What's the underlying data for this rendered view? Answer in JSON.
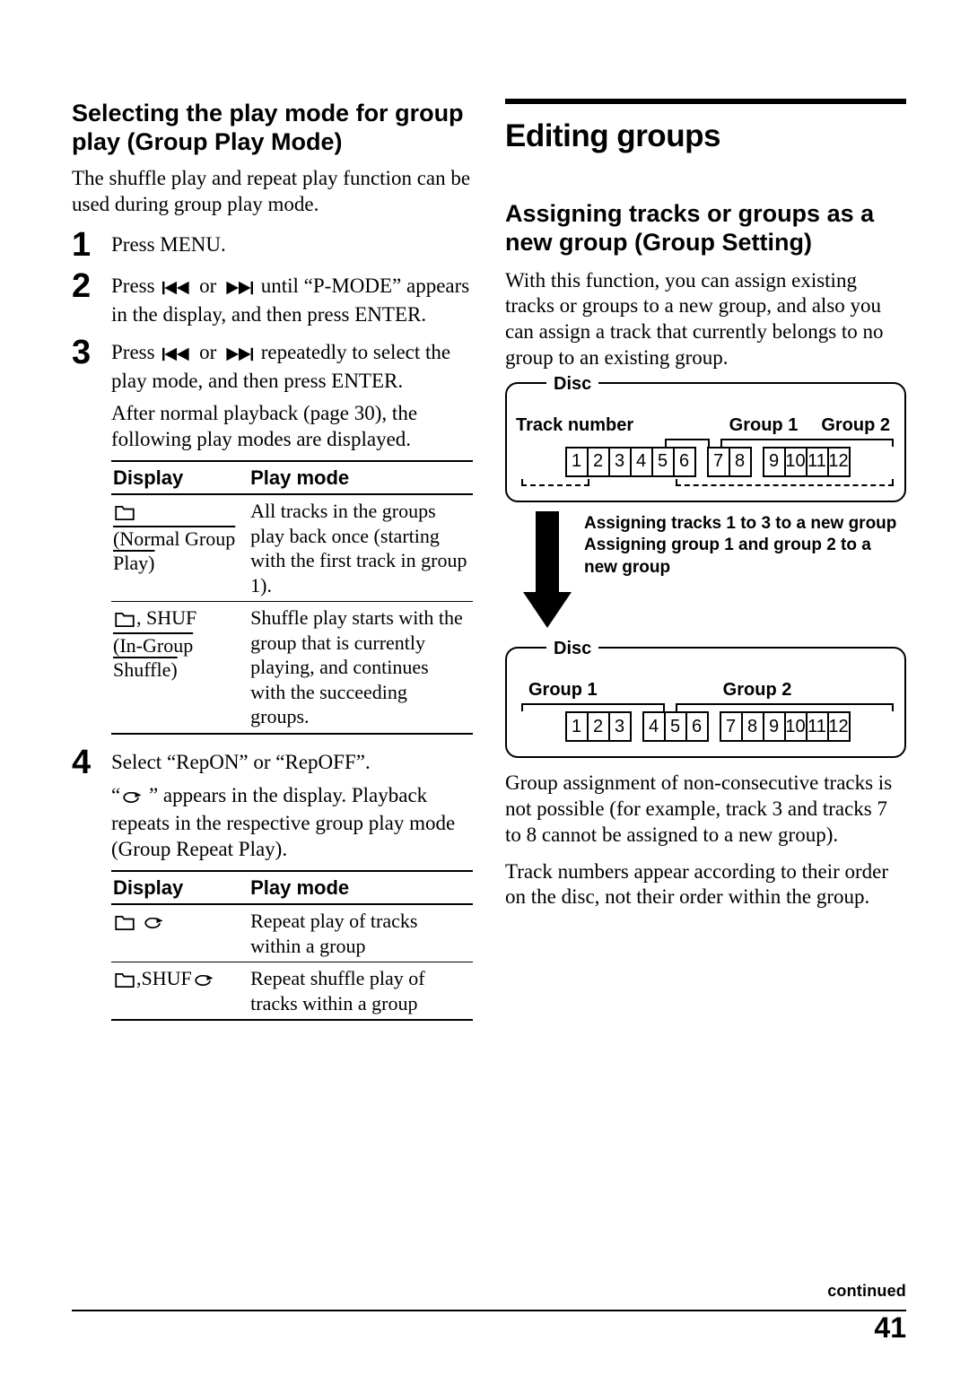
{
  "left": {
    "heading": "Selecting the play mode for group play (Group Play Mode)",
    "intro": "The shuffle play and repeat play function can be used during group play mode.",
    "steps": {
      "s1": "Press MENU.",
      "s2a": "Press ",
      "s2b": " or ",
      "s2c": " until “P-MODE” appears in the display, and then press ENTER.",
      "s3a": "Press ",
      "s3b": " or ",
      "s3c": " repeatedly to select the play mode, and then press ENTER.",
      "s3_note": "After normal playback (page 30), the following play modes are displayed.",
      "s4": "Select “RepON” or “RepOFF”.",
      "s4_note1": "“",
      "s4_note2": " ” appears in the display. Playback repeats in the respective group play mode (Group Repeat Play)."
    },
    "table1": {
      "h1": "Display",
      "h2": "Play mode",
      "r1dA": "(Normal Group Play)",
      "r1p": "All tracks in the groups play back once (starting with the first track in group 1).",
      "r2dA": ", SHUF",
      "r2dB": "(In-Group Shuffle)",
      "r2p": "Shuffle play starts with the group that is currently playing, and continues with the succeeding groups."
    },
    "table2": {
      "h1": "Display",
      "h2": "Play mode",
      "r1p": "Repeat play of tracks within a group",
      "r2dA": ",SHUF",
      "r2p": "Repeat shuffle play of tracks within a group"
    }
  },
  "right": {
    "bigheading": "Editing groups",
    "heading": "Assigning tracks or groups as a new group (Group Setting)",
    "intro": "With this function, you can assign existing tracks or groups to a new group, and also you can assign a track that currently belongs to no group to an existing group.",
    "diagram": {
      "disc": "Disc",
      "tracknum": "Track number",
      "group1": "Group 1",
      "group2": "Group 2",
      "tracksA": [
        "1",
        "2",
        "3",
        "4",
        "5",
        "6"
      ],
      "tracksB": [
        "7",
        "8"
      ],
      "tracksC": [
        "9",
        "10",
        "11",
        "12"
      ],
      "arrow_line1": "Assigning tracks 1 to 3 to a new group",
      "arrow_line2": "Assigning group 1 and group 2 to a new group",
      "tracksD": [
        "1",
        "2",
        "3"
      ],
      "tracksE": [
        "4",
        "5",
        "6"
      ],
      "tracksF": [
        "7",
        "8",
        "9",
        "10",
        "11",
        "12"
      ]
    },
    "after1": "Group assignment of non-consecutive tracks is not possible (for example, track 3 and tracks 7 to 8 cannot be assigned to a new group).",
    "after2": "Track numbers appear according to their order on the disc, not their order within the group."
  },
  "footer": {
    "continued": "continued",
    "pagenum": "41"
  }
}
